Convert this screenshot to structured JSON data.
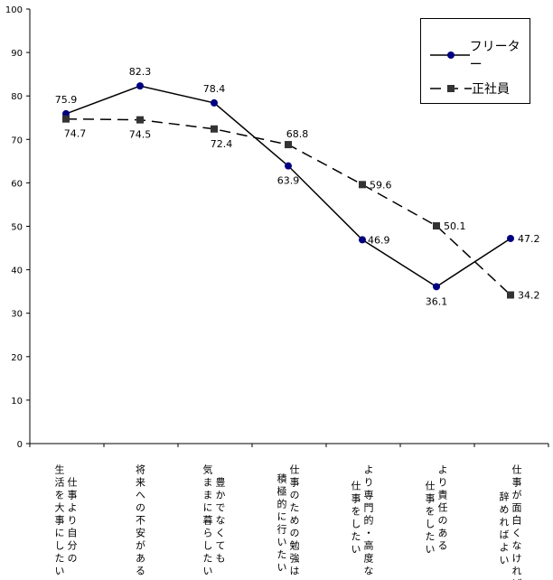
{
  "chart_data": {
    "type": "line",
    "title": "",
    "xlabel": "",
    "ylabel": "",
    "ylim": [
      0,
      100
    ],
    "yticks": [
      "0",
      "10",
      "20",
      "30",
      "40",
      "50",
      "60",
      "70",
      "80",
      "90",
      "100"
    ],
    "categories": [
      [
        "仕事より自分の",
        "生活を大事にしたい"
      ],
      [
        "将来への不安がある"
      ],
      [
        "豊かでなくても",
        "気ままに暮らしたい"
      ],
      [
        "仕事のための勉強は",
        "積極的に行いたい"
      ],
      [
        "より専門的・高度な",
        "仕事をしたい"
      ],
      [
        "より責任のある",
        "仕事をしたい"
      ],
      [
        "仕事が面白くなければ",
        "辞めればよい"
      ]
    ],
    "series": [
      {
        "name": "フリーター",
        "values": [
          75.9,
          82.3,
          78.4,
          63.9,
          46.9,
          36.1,
          47.2
        ],
        "labels": [
          "75.9",
          "82.3",
          "78.4",
          "63.9",
          "46.9",
          "36.1",
          "47.2"
        ],
        "color": "#000080",
        "marker": "circle",
        "line": "solid"
      },
      {
        "name": "正社員",
        "values": [
          74.7,
          74.5,
          72.4,
          68.8,
          59.6,
          50.1,
          34.2
        ],
        "labels": [
          "74.7",
          "74.5",
          "72.4",
          "68.8",
          "59.6",
          "50.1",
          "34.2"
        ],
        "color": "#333333",
        "marker": "square",
        "line": "dashed"
      }
    ],
    "legend_position": "top-right",
    "grid": false
  }
}
